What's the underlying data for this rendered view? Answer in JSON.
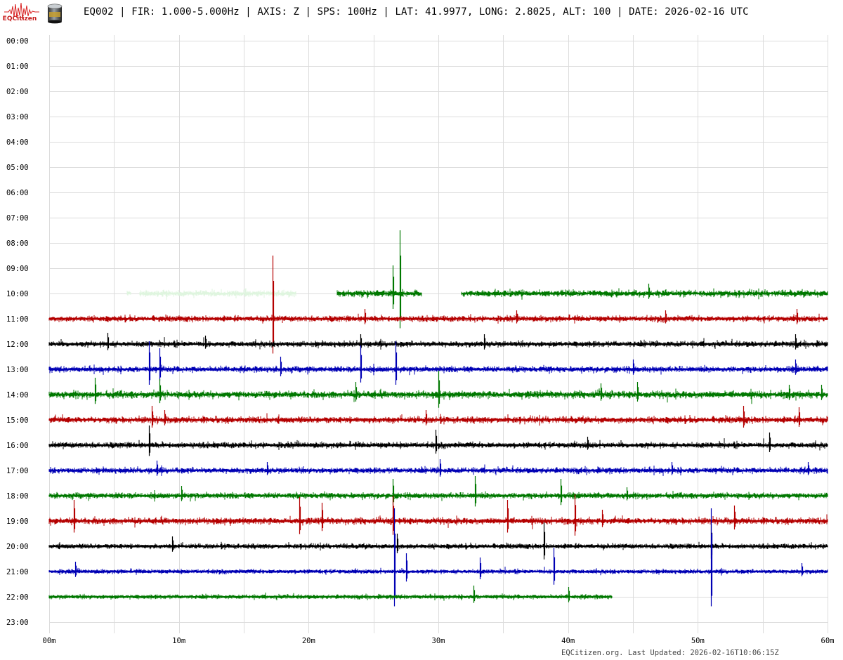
{
  "header": {
    "logo_text": "EQCitizen",
    "title": "EQ002 | FIR: 1.000-5.000Hz | AXIS: Z | SPS: 100Hz | LAT: 41.9977, LONG: 2.8025, ALT: 100 | DATE: 2026-02-16 UTC"
  },
  "footer": {
    "text": "EQCitizen.org. Last Updated: 2026-02-16T10:06:15Z"
  },
  "chart_data": {
    "type": "line",
    "title": "EQ002 | FIR: 1.000-5.000Hz | AXIS: Z | SPS: 100Hz | LAT: 41.9977, LONG: 2.8025, ALT: 100 | DATE: 2026-02-16 UTC",
    "xlabel": "",
    "ylabel": "",
    "x_ticks": [
      "00m",
      "10m",
      "20m",
      "30m",
      "40m",
      "50m",
      "60m"
    ],
    "xlim": [
      0,
      60
    ],
    "grid": true,
    "row_colors": [
      "#000000",
      "#0000b4",
      "#007800",
      "#b40000"
    ],
    "faded_color": "#dff5df",
    "rows": [
      {
        "label": "00:00",
        "segments": []
      },
      {
        "label": "01:00",
        "segments": []
      },
      {
        "label": "02:00",
        "segments": []
      },
      {
        "label": "03:00",
        "segments": []
      },
      {
        "label": "04:00",
        "segments": []
      },
      {
        "label": "05:00",
        "segments": []
      },
      {
        "label": "06:00",
        "segments": []
      },
      {
        "label": "07:00",
        "segments": []
      },
      {
        "label": "08:00",
        "segments": []
      },
      {
        "label": "09:00",
        "segments": []
      },
      {
        "label": "10:00",
        "color_index": 2,
        "amplitude": 7,
        "segments": [
          [
            6,
            6.3,
            "faded"
          ],
          [
            7,
            19,
            "faded"
          ],
          [
            22.2,
            28.7,
            "normal"
          ],
          [
            31.8,
            60,
            "normal"
          ]
        ],
        "spikes": [
          [
            27,
            90
          ],
          [
            26.5,
            40
          ],
          [
            46.2,
            14
          ]
        ]
      },
      {
        "label": "11:00",
        "color_index": 3,
        "amplitude": 6,
        "segments": [
          [
            0,
            60,
            "normal"
          ]
        ],
        "spikes": [
          [
            17.2,
            90
          ],
          [
            24.3,
            14
          ],
          [
            36,
            12
          ],
          [
            47.5,
            12
          ],
          [
            57.6,
            14
          ]
        ]
      },
      {
        "label": "12:00",
        "color_index": 0,
        "amplitude": 6,
        "segments": [
          [
            0,
            60,
            "normal"
          ]
        ],
        "spikes": [
          [
            4.5,
            16
          ],
          [
            12,
            12
          ],
          [
            24,
            14
          ],
          [
            33.5,
            14
          ],
          [
            57.5,
            14
          ]
        ]
      },
      {
        "label": "13:00",
        "color_index": 1,
        "amplitude": 6,
        "segments": [
          [
            0,
            60,
            "normal"
          ]
        ],
        "spikes": [
          [
            7.7,
            40
          ],
          [
            8.5,
            30
          ],
          [
            17.8,
            18
          ],
          [
            24,
            34
          ],
          [
            26.7,
            40
          ],
          [
            45,
            14
          ],
          [
            57.5,
            14
          ]
        ]
      },
      {
        "label": "14:00",
        "color_index": 2,
        "amplitude": 8,
        "segments": [
          [
            0,
            60,
            "normal"
          ]
        ],
        "spikes": [
          [
            3.5,
            24
          ],
          [
            8.5,
            22
          ],
          [
            23.6,
            18
          ],
          [
            30,
            34
          ],
          [
            42.5,
            16
          ],
          [
            45.3,
            18
          ],
          [
            57,
            14
          ],
          [
            59.5,
            14
          ]
        ]
      },
      {
        "label": "15:00",
        "color_index": 3,
        "amplitude": 7,
        "segments": [
          [
            0,
            60,
            "normal"
          ]
        ],
        "spikes": [
          [
            7.9,
            20
          ],
          [
            8.9,
            14
          ],
          [
            29,
            14
          ],
          [
            53.5,
            20
          ],
          [
            57.8,
            18
          ]
        ]
      },
      {
        "label": "16:00",
        "color_index": 0,
        "amplitude": 6,
        "segments": [
          [
            0,
            60,
            "normal"
          ]
        ],
        "spikes": [
          [
            7.7,
            28
          ],
          [
            29.8,
            22
          ],
          [
            41.5,
            12
          ],
          [
            55.5,
            18
          ]
        ]
      },
      {
        "label": "17:00",
        "color_index": 1,
        "amplitude": 6,
        "segments": [
          [
            0,
            60,
            "normal"
          ]
        ],
        "spikes": [
          [
            8.3,
            14
          ],
          [
            16.8,
            12
          ],
          [
            30.1,
            16
          ],
          [
            48,
            12
          ],
          [
            58.5,
            12
          ]
        ]
      },
      {
        "label": "18:00",
        "color_index": 2,
        "amplitude": 6,
        "segments": [
          [
            0,
            60,
            "normal"
          ]
        ],
        "spikes": [
          [
            10.2,
            14
          ],
          [
            26.5,
            24
          ],
          [
            32.8,
            28
          ],
          [
            39.4,
            24
          ],
          [
            44.5,
            12
          ]
        ]
      },
      {
        "label": "19:00",
        "color_index": 3,
        "amplitude": 7,
        "segments": [
          [
            0,
            60,
            "normal"
          ]
        ],
        "spikes": [
          [
            1.9,
            30
          ],
          [
            19.3,
            34
          ],
          [
            21,
            26
          ],
          [
            26.5,
            36
          ],
          [
            35.3,
            30
          ],
          [
            40.5,
            38
          ],
          [
            42.6,
            16
          ],
          [
            52.8,
            22
          ]
        ]
      },
      {
        "label": "20:00",
        "color_index": 0,
        "amplitude": 5,
        "segments": [
          [
            0,
            60,
            "normal"
          ]
        ],
        "spikes": [
          [
            9.5,
            14
          ],
          [
            26.8,
            18
          ],
          [
            38.1,
            34
          ],
          [
            51,
            32
          ]
        ]
      },
      {
        "label": "21:00",
        "color_index": 1,
        "amplitude": 4,
        "segments": [
          [
            0,
            60,
            "normal"
          ]
        ],
        "spikes": [
          [
            2,
            14
          ],
          [
            26.6,
            90
          ],
          [
            27.5,
            26
          ],
          [
            33.2,
            20
          ],
          [
            38.9,
            34
          ],
          [
            51,
            90
          ],
          [
            58,
            12
          ]
        ]
      },
      {
        "label": "22:00",
        "color_index": 2,
        "amplitude": 4,
        "segments": [
          [
            0,
            43.4,
            "normal"
          ]
        ],
        "spikes": [
          [
            32.7,
            16
          ],
          [
            40,
            14
          ]
        ]
      },
      {
        "label": "23:00",
        "segments": []
      }
    ]
  }
}
